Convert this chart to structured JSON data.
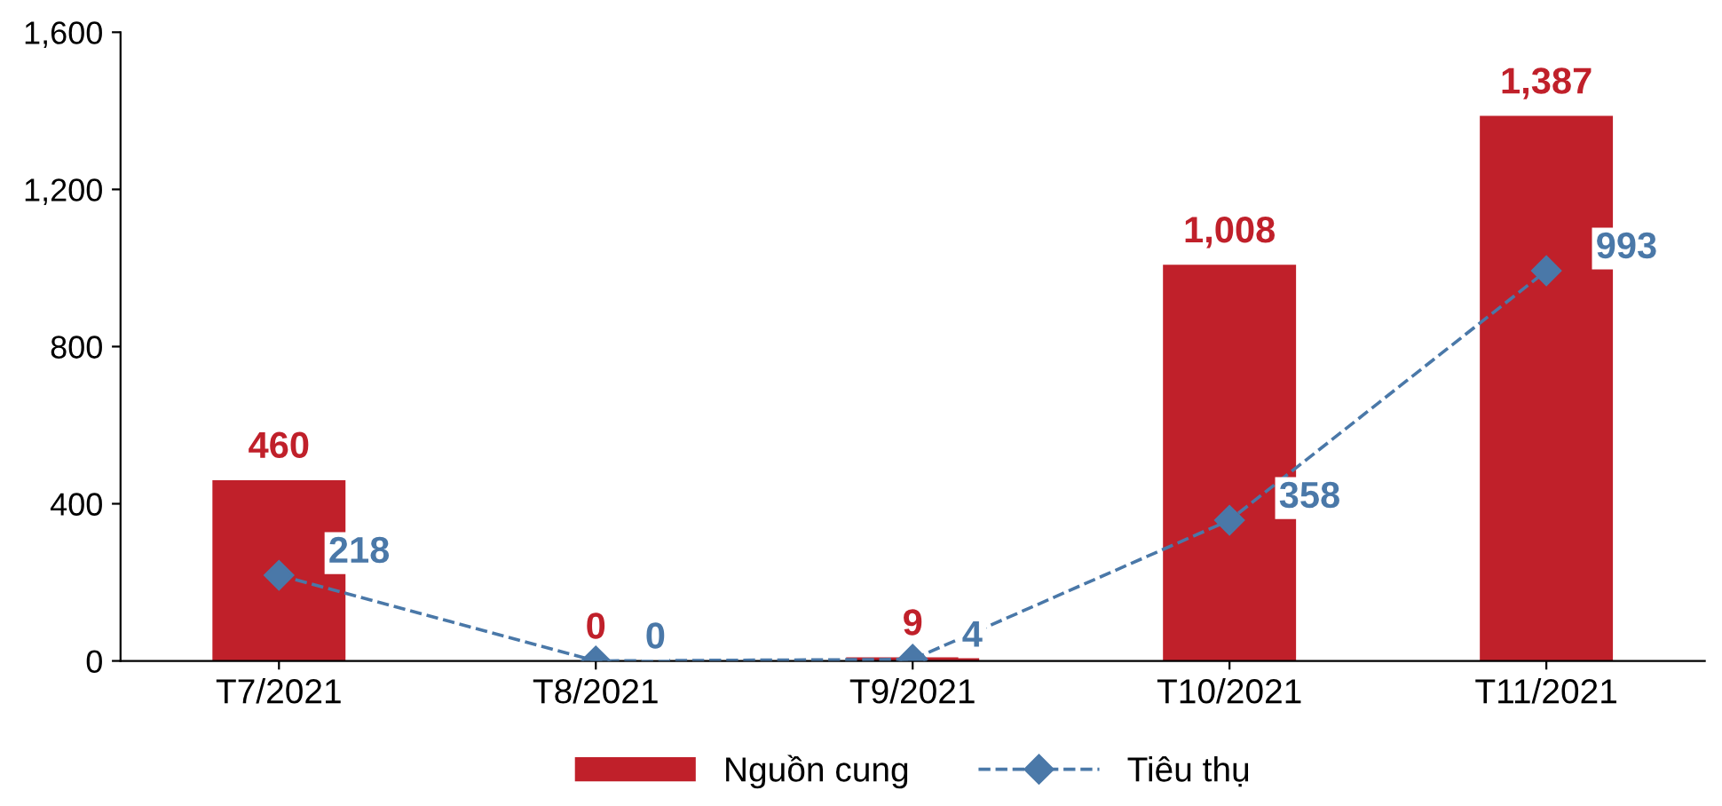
{
  "chart_data": {
    "type": "bar",
    "categories": [
      "T7/2021",
      "T8/2021",
      "T9/2021",
      "T10/2021",
      "T11/2021"
    ],
    "series": [
      {
        "name": "Nguồn cung",
        "color": "#c0202a",
        "values": [
          460,
          0,
          9,
          1008,
          1387
        ],
        "value_labels": [
          "460",
          "0",
          "9",
          "1,008",
          "1,387"
        ]
      },
      {
        "name": "Tiêu thụ",
        "type": "line",
        "color": "#4a78a8",
        "values": [
          218,
          0,
          4,
          358,
          993
        ],
        "value_labels": [
          "218",
          "0",
          "4",
          "358",
          "993"
        ],
        "marker": "diamond",
        "line_style": "dashed"
      }
    ],
    "ylim": [
      0,
      1600
    ],
    "yticks": [
      0,
      {
        "value": 400,
        "label": "400"
      },
      {
        "value": 800,
        "label": "800"
      },
      {
        "value": 1200,
        "label": "1,200"
      },
      {
        "value": 1600,
        "label": "1,600"
      }
    ],
    "grid": false,
    "legend": "bottom"
  }
}
